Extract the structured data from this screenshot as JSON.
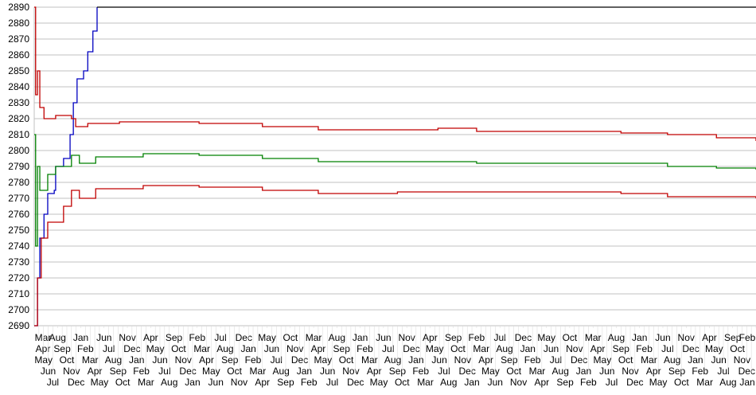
{
  "chart_data": {
    "type": "line",
    "title": "",
    "xlabel": "",
    "ylabel": "",
    "ylim": [
      2690,
      2890
    ],
    "y_ticks": [
      2690,
      2700,
      2710,
      2720,
      2730,
      2740,
      2750,
      2760,
      2770,
      2780,
      2790,
      2800,
      2810,
      2820,
      2830,
      2840,
      2850,
      2860,
      2870,
      2880,
      2890
    ],
    "grid": true,
    "categories": [
      "Mar",
      "Apr",
      "May",
      "Jun",
      "Jul",
      "Aug",
      "Sep",
      "Oct",
      "Nov",
      "Dec",
      "Jan",
      "Feb",
      "Mar",
      "Apr",
      "May",
      "Jun",
      "Jul",
      "Aug",
      "Sep",
      "Oct",
      "Nov",
      "Dec",
      "Jan",
      "Feb",
      "Mar",
      "Apr",
      "May",
      "Jun",
      "Jul",
      "Aug",
      "Sep",
      "Oct",
      "Nov",
      "Dec",
      "Jan",
      "Feb",
      "Mar",
      "Apr",
      "May",
      "Jun",
      "Jul",
      "Aug",
      "Sep",
      "Oct",
      "Nov",
      "Dec",
      "Jan",
      "Feb",
      "Mar",
      "Apr",
      "May",
      "Jun",
      "Jul",
      "Aug",
      "Sep",
      "Oct",
      "Nov",
      "Dec",
      "Jan",
      "Feb",
      "Mar",
      "Apr",
      "May",
      "Jun",
      "Jul",
      "Aug",
      "Sep",
      "Oct",
      "Nov",
      "Dec",
      "Jan",
      "Feb",
      "Mar",
      "Apr",
      "May",
      "Jun",
      "Jul",
      "Aug",
      "Sep",
      "Oct",
      "Nov",
      "Dec",
      "Jan",
      "Feb",
      "Mar",
      "Apr",
      "May",
      "Jun",
      "Jul",
      "Aug",
      "Sep",
      "Oct",
      "Nov",
      "Dec",
      "Jan",
      "Feb",
      "Mar",
      "Apr",
      "May",
      "Jun",
      "Jul",
      "Aug",
      "Sep",
      "Oct",
      "Nov",
      "Dec",
      "Jan",
      "Feb",
      "Mar",
      "Apr",
      "May",
      "Jun",
      "Jul",
      "Aug",
      "Sep",
      "Oct",
      "Nov",
      "Dec",
      "Jan",
      "Feb",
      "Mar",
      "Apr",
      "May",
      "Jun",
      "Jul",
      "Aug",
      "Sep",
      "Oct",
      "Nov",
      "Dec",
      "Jan",
      "Feb",
      "Mar",
      "Apr",
      "May",
      "Jun",
      "Jul",
      "Aug",
      "Sep",
      "Oct",
      "Nov",
      "Dec",
      "Jan",
      "Feb",
      "Mar",
      "Apr",
      "May",
      "Jun",
      "Jul",
      "Aug",
      "Sep",
      "Oct",
      "Nov",
      "Dec",
      "Jan",
      "Feb"
    ],
    "series": [
      {
        "color": "#0000c0",
        "points": [
          [
            0,
            2690
          ],
          [
            0.7,
            2720
          ],
          [
            1.2,
            2745
          ],
          [
            2.1,
            2760
          ],
          [
            2.9,
            2773
          ],
          [
            4.3,
            2775
          ],
          [
            4.6,
            2790
          ],
          [
            6.3,
            2795
          ],
          [
            7.7,
            2810
          ],
          [
            8.4,
            2830
          ],
          [
            9.2,
            2845
          ],
          [
            10.6,
            2850
          ],
          [
            11.5,
            2862
          ],
          [
            12.6,
            2875
          ],
          [
            13.5,
            2890
          ]
        ]
      },
      {
        "color": "#000000",
        "points": [
          [
            13.5,
            2890
          ],
          [
            155,
            2890
          ]
        ]
      },
      {
        "color": "#c00000",
        "points": [
          [
            0,
            2890
          ],
          [
            0.3,
            2835
          ],
          [
            0.7,
            2850
          ],
          [
            1.2,
            2827
          ],
          [
            2.1,
            2820
          ],
          [
            4.6,
            2822
          ],
          [
            8,
            2820
          ],
          [
            8.9,
            2815
          ],
          [
            11.5,
            2817
          ],
          [
            18.3,
            2818
          ],
          [
            35.4,
            2817
          ],
          [
            49,
            2815
          ],
          [
            61,
            2813
          ],
          [
            78,
            2813
          ],
          [
            86.7,
            2814
          ],
          [
            95,
            2812
          ],
          [
            112,
            2812
          ],
          [
            126,
            2811
          ],
          [
            136,
            2810
          ],
          [
            146.5,
            2808
          ],
          [
            155,
            2806
          ]
        ]
      },
      {
        "color": "#008000",
        "points": [
          [
            0,
            2810
          ],
          [
            0.3,
            2740
          ],
          [
            0.7,
            2790
          ],
          [
            1.2,
            2775
          ],
          [
            2.9,
            2785
          ],
          [
            4.6,
            2790
          ],
          [
            8,
            2797
          ],
          [
            9.7,
            2792
          ],
          [
            13.2,
            2796
          ],
          [
            23.4,
            2798
          ],
          [
            35.4,
            2797
          ],
          [
            49,
            2795
          ],
          [
            61,
            2793
          ],
          [
            78,
            2793
          ],
          [
            95,
            2792
          ],
          [
            112,
            2792
          ],
          [
            126,
            2792
          ],
          [
            136,
            2790
          ],
          [
            146.5,
            2789
          ],
          [
            155,
            2788
          ]
        ]
      },
      {
        "color": "#c00000",
        "points": [
          [
            0,
            2690
          ],
          [
            0.7,
            2720
          ],
          [
            1.5,
            2745
          ],
          [
            2.9,
            2755
          ],
          [
            6.3,
            2765
          ],
          [
            8,
            2775
          ],
          [
            9.7,
            2770
          ],
          [
            13.2,
            2776
          ],
          [
            23.4,
            2778
          ],
          [
            35.4,
            2777
          ],
          [
            49,
            2775
          ],
          [
            61,
            2773
          ],
          [
            78,
            2774
          ],
          [
            95,
            2774
          ],
          [
            112,
            2774
          ],
          [
            126,
            2773
          ],
          [
            136,
            2771
          ],
          [
            155,
            2770
          ]
        ]
      }
    ]
  }
}
